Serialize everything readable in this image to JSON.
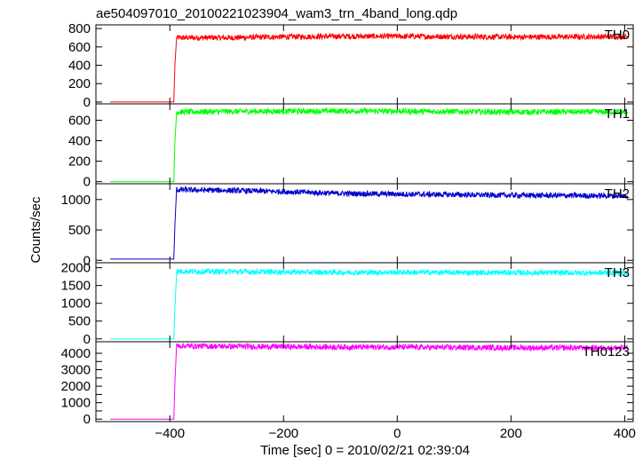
{
  "title": "ae504097010_20100221023904_wam3_trn_4band_long.qdp",
  "ylabel": "Counts/sec",
  "xlabel": "Time [sec] 0 = 2010/02/21 02:39:04",
  "chart_data": {
    "type": "line",
    "title": "ae504097010_20100221023904_wam3_trn_4band_long.qdp",
    "xlabel": "Time [sec] 0 = 2010/02/21 02:39:04",
    "ylabel": "Counts/sec",
    "xlim": [
      -530,
      415
    ],
    "xticks": [
      -400,
      -200,
      0,
      200,
      400
    ],
    "x_tick_labels": [
      "−400",
      "−200",
      "0",
      "200",
      "400"
    ],
    "panels": [
      {
        "name": "TH0",
        "color": "#ff0000",
        "ylim": [
          -20,
          840
        ],
        "yticks": [
          0,
          200,
          400,
          600,
          800
        ],
        "points": [
          [
            -505,
            0
          ],
          [
            -393,
            0
          ],
          [
            -391,
            420
          ],
          [
            -388,
            700
          ],
          [
            -300,
            700
          ],
          [
            -200,
            710
          ],
          [
            -100,
            715
          ],
          [
            0,
            715
          ],
          [
            100,
            712
          ],
          [
            200,
            708
          ],
          [
            300,
            710
          ],
          [
            405,
            712
          ]
        ]
      },
      {
        "name": "TH1",
        "color": "#00ff00",
        "ylim": [
          -20,
          760
        ],
        "yticks": [
          0,
          200,
          400,
          600
        ],
        "points": [
          [
            -505,
            0
          ],
          [
            -393,
            0
          ],
          [
            -391,
            400
          ],
          [
            -388,
            680
          ],
          [
            -300,
            685
          ],
          [
            -200,
            688
          ],
          [
            -100,
            690
          ],
          [
            0,
            688
          ],
          [
            100,
            685
          ],
          [
            200,
            680
          ],
          [
            300,
            682
          ],
          [
            405,
            680
          ]
        ]
      },
      {
        "name": "TH2",
        "color": "#0000cc",
        "ylim": [
          -40,
          1260
        ],
        "yticks": [
          0,
          500,
          1000
        ],
        "points": [
          [
            -505,
            20
          ],
          [
            -393,
            20
          ],
          [
            -391,
            600
          ],
          [
            -388,
            1160
          ],
          [
            -300,
            1150
          ],
          [
            -200,
            1130
          ],
          [
            -100,
            1100
          ],
          [
            0,
            1090
          ],
          [
            100,
            1080
          ],
          [
            200,
            1070
          ],
          [
            300,
            1065
          ],
          [
            405,
            1060
          ]
        ]
      },
      {
        "name": "TH3",
        "color": "#00ffff",
        "ylim": [
          -80,
          2140
        ],
        "yticks": [
          0,
          500,
          1000,
          1500,
          2000
        ],
        "points": [
          [
            -505,
            0
          ],
          [
            -393,
            0
          ],
          [
            -391,
            900
          ],
          [
            -388,
            1900
          ],
          [
            -300,
            1890
          ],
          [
            -200,
            1880
          ],
          [
            -100,
            1870
          ],
          [
            0,
            1870
          ],
          [
            100,
            1865
          ],
          [
            200,
            1860
          ],
          [
            300,
            1858
          ],
          [
            405,
            1855
          ]
        ]
      },
      {
        "name": "TH0123",
        "color": "#ff00ff",
        "ylim": [
          -150,
          4700
        ],
        "yticks": [
          0,
          500,
          1000,
          1500,
          2000,
          2500,
          3000,
          3500,
          4000
        ],
        "points": [
          [
            -505,
            0
          ],
          [
            -393,
            0
          ],
          [
            -391,
            2300
          ],
          [
            -388,
            4450
          ],
          [
            -300,
            4420
          ],
          [
            -200,
            4400
          ],
          [
            -100,
            4380
          ],
          [
            0,
            4370
          ],
          [
            100,
            4350
          ],
          [
            200,
            4340
          ],
          [
            300,
            4330
          ],
          [
            405,
            4320
          ]
        ]
      }
    ]
  }
}
